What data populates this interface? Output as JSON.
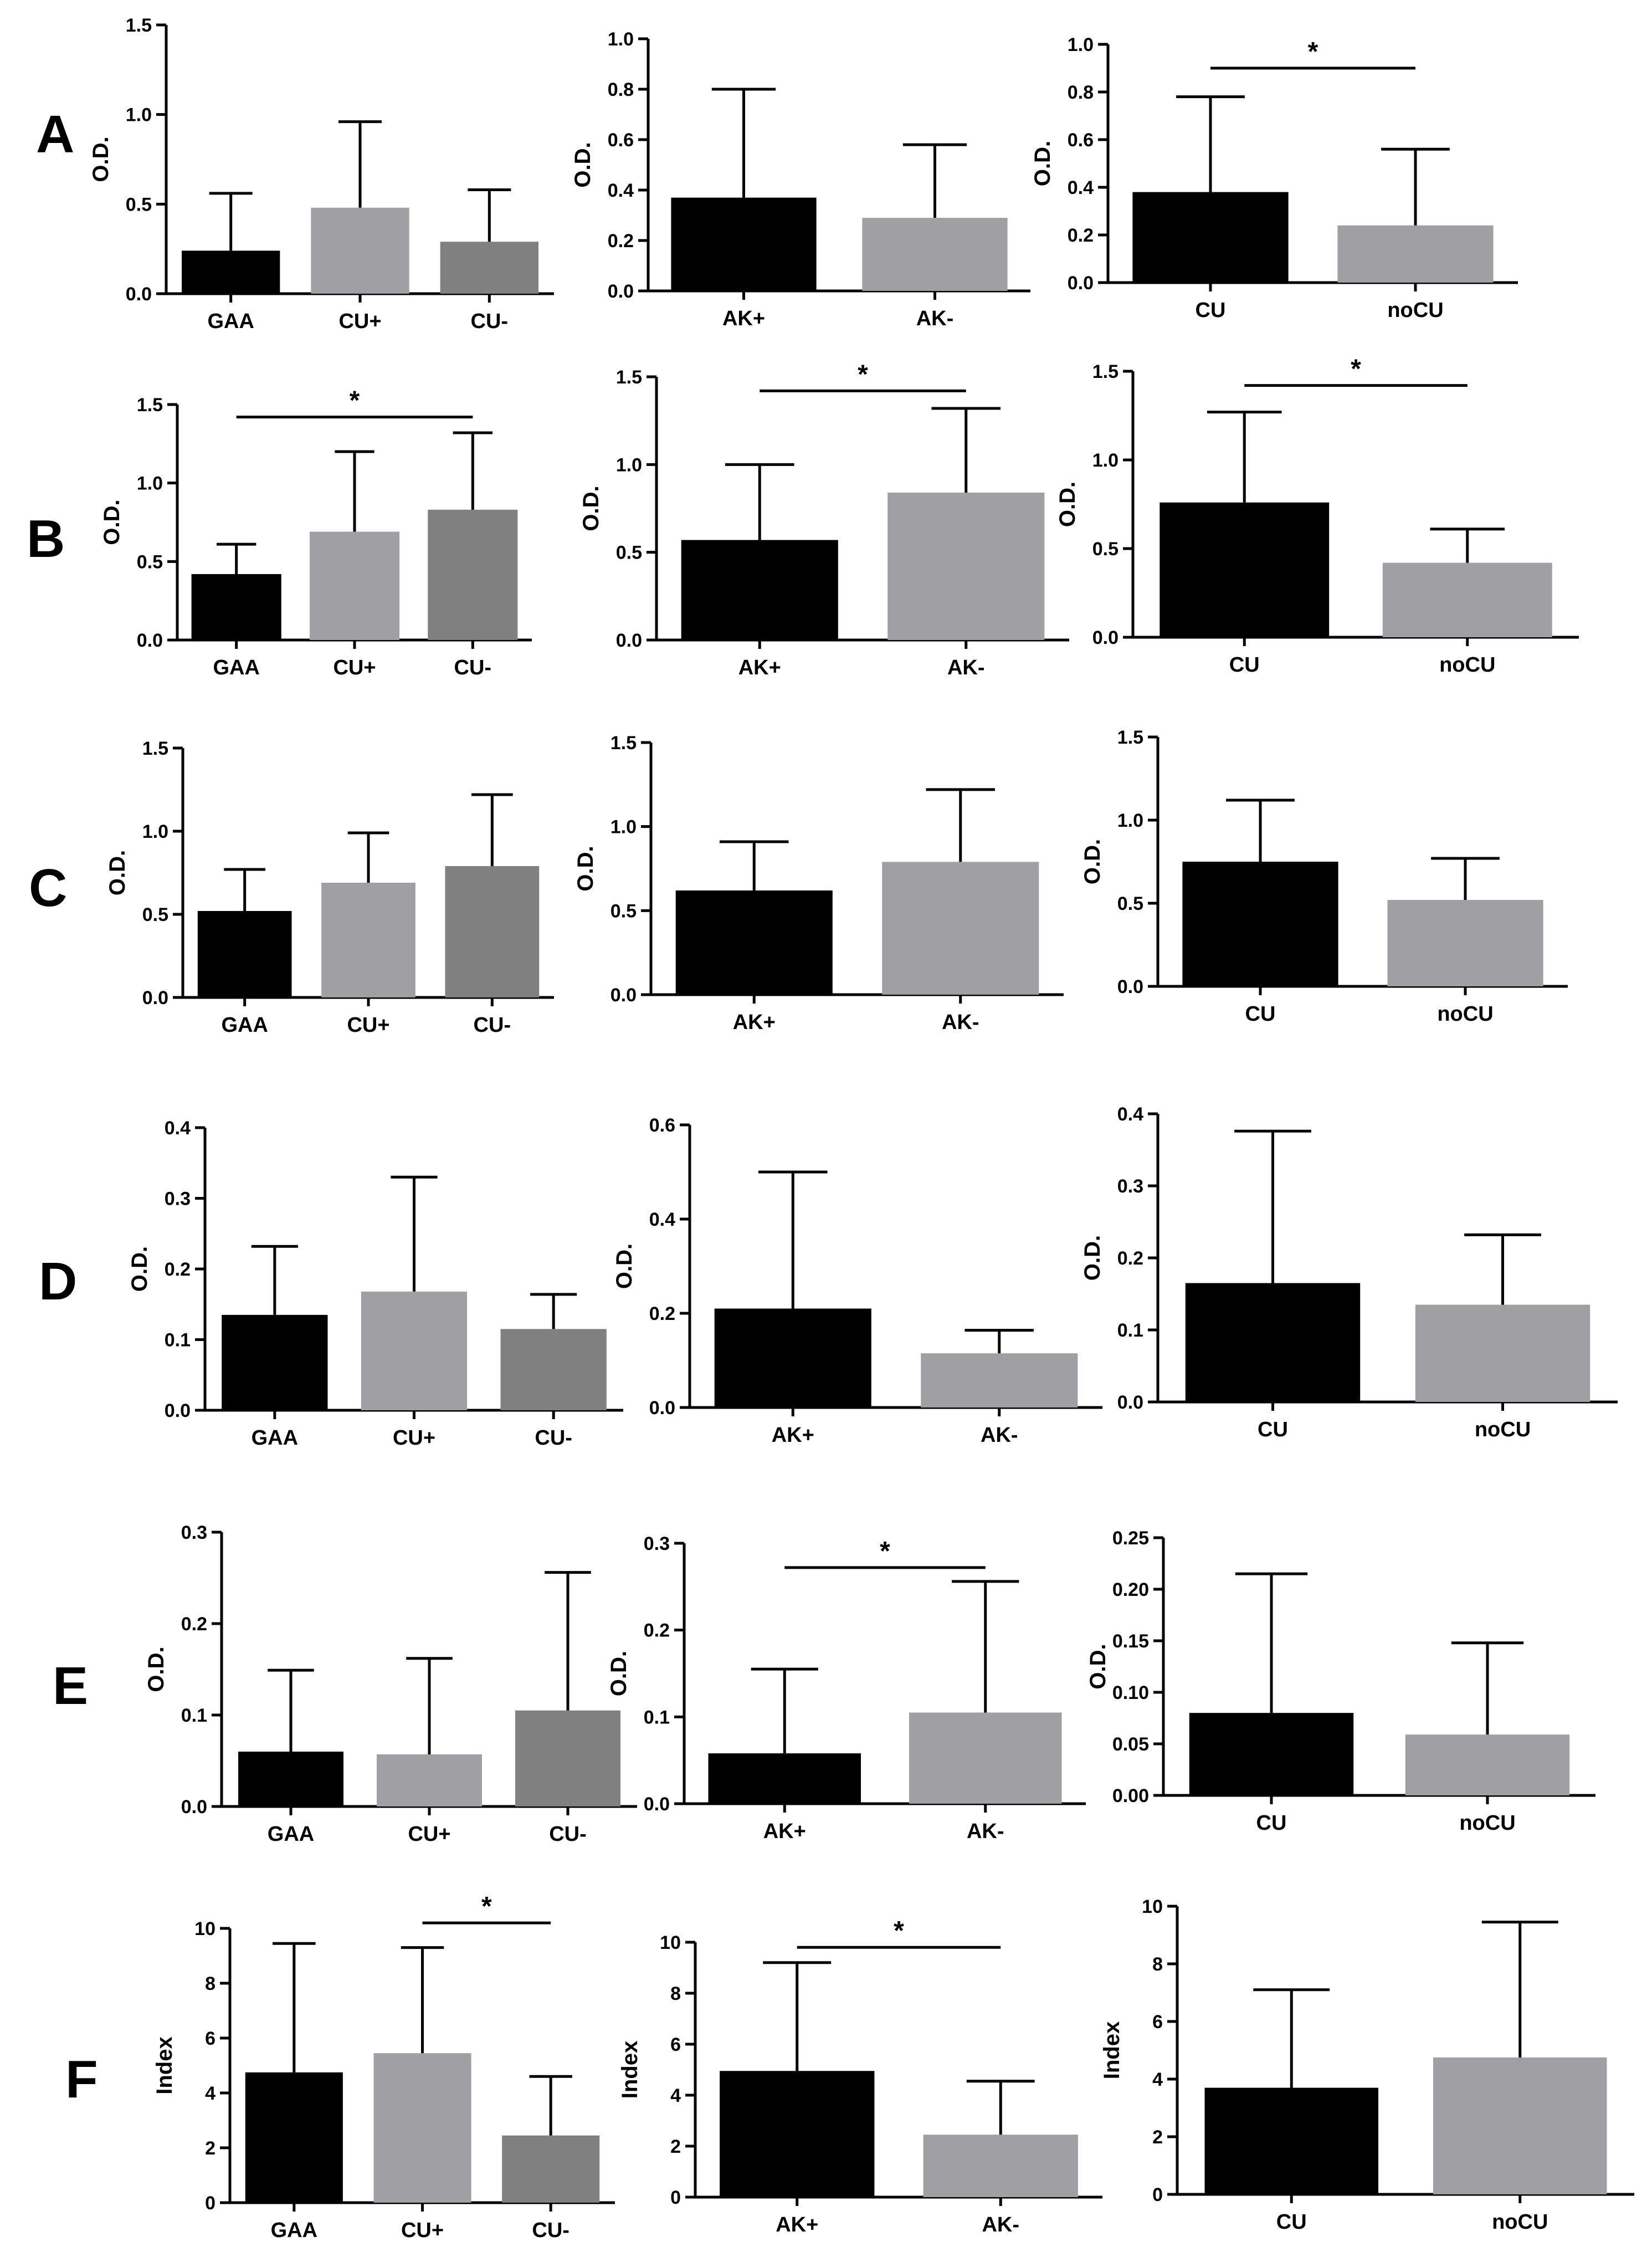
{
  "figure": {
    "row_labels": [
      "A",
      "B",
      "C",
      "D",
      "E",
      "F"
    ],
    "colors": {
      "black": "#000000",
      "light_gray": "#a0a0a4",
      "dark_gray": "#808080"
    }
  },
  "chart_data": [
    {
      "id": "A1",
      "row": "A",
      "type": "bar",
      "ylabel": "O.D.",
      "ylim": [
        0,
        1.5
      ],
      "yticks": [
        "0.0",
        "0.5",
        "1.0",
        "1.5"
      ],
      "categories": [
        "GAA",
        "CU+",
        "CU-"
      ],
      "values": [
        0.24,
        0.48,
        0.29
      ],
      "errors": [
        0.56,
        0.96,
        0.58
      ],
      "colors": [
        "#000000",
        "#a0a0a4",
        "#808080"
      ],
      "significance": []
    },
    {
      "id": "A2",
      "row": "A",
      "type": "bar",
      "ylabel": "O.D.",
      "ylim": [
        0,
        1.0
      ],
      "yticks": [
        "0.0",
        "0.2",
        "0.4",
        "0.6",
        "0.8",
        "1.0"
      ],
      "categories": [
        "AK+",
        "AK-"
      ],
      "values": [
        0.37,
        0.29
      ],
      "errors": [
        0.8,
        0.58
      ],
      "colors": [
        "#000000",
        "#a0a0a4"
      ],
      "significance": []
    },
    {
      "id": "A3",
      "row": "A",
      "type": "bar",
      "ylabel": "O.D.",
      "ylim": [
        0,
        1.0
      ],
      "yticks": [
        "0.0",
        "0.2",
        "0.4",
        "0.6",
        "0.8",
        "1.0"
      ],
      "categories": [
        "CU",
        "noCU"
      ],
      "values": [
        0.38,
        0.24
      ],
      "errors": [
        0.78,
        0.56
      ],
      "colors": [
        "#000000",
        "#a0a0a4"
      ],
      "significance": [
        {
          "from": 0,
          "to": 1,
          "y": 0.9,
          "label": "*"
        }
      ]
    },
    {
      "id": "B1",
      "row": "B",
      "type": "bar",
      "ylabel": "O.D.",
      "ylim": [
        0,
        1.5
      ],
      "yticks": [
        "0.0",
        "0.5",
        "1.0",
        "1.5"
      ],
      "categories": [
        "GAA",
        "CU+",
        "CU-"
      ],
      "values": [
        0.42,
        0.69,
        0.83
      ],
      "errors": [
        0.61,
        1.2,
        1.32
      ],
      "colors": [
        "#000000",
        "#a0a0a4",
        "#808080"
      ],
      "significance": [
        {
          "from": 0,
          "to": 2,
          "y": 1.42,
          "label": "*"
        }
      ]
    },
    {
      "id": "B2",
      "row": "B",
      "type": "bar",
      "ylabel": "O.D.",
      "ylim": [
        0,
        1.5
      ],
      "yticks": [
        "0.0",
        "0.5",
        "1.0",
        "1.5"
      ],
      "categories": [
        "AK+",
        "AK-"
      ],
      "values": [
        0.57,
        0.84
      ],
      "errors": [
        1.0,
        1.32
      ],
      "colors": [
        "#000000",
        "#a0a0a4"
      ],
      "significance": [
        {
          "from": 0,
          "to": 1,
          "y": 1.42,
          "label": "*"
        }
      ]
    },
    {
      "id": "B3",
      "row": "B",
      "type": "bar",
      "ylabel": "O.D.",
      "ylim": [
        0,
        1.5
      ],
      "yticks": [
        "0.0",
        "0.5",
        "1.0",
        "1.5"
      ],
      "categories": [
        "CU",
        "noCU"
      ],
      "values": [
        0.76,
        0.42
      ],
      "errors": [
        1.27,
        0.61
      ],
      "colors": [
        "#000000",
        "#a0a0a4"
      ],
      "significance": [
        {
          "from": 0,
          "to": 1,
          "y": 1.42,
          "label": "*"
        }
      ]
    },
    {
      "id": "C1",
      "row": "C",
      "type": "bar",
      "ylabel": "O.D.",
      "ylim": [
        0,
        1.5
      ],
      "yticks": [
        "0.0",
        "0.5",
        "1.0",
        "1.5"
      ],
      "categories": [
        "GAA",
        "CU+",
        "CU-"
      ],
      "values": [
        0.52,
        0.69,
        0.79
      ],
      "errors": [
        0.77,
        0.99,
        1.22
      ],
      "colors": [
        "#000000",
        "#a0a0a4",
        "#808080"
      ],
      "significance": []
    },
    {
      "id": "C2",
      "row": "C",
      "type": "bar",
      "ylabel": "O.D.",
      "ylim": [
        0,
        1.5
      ],
      "yticks": [
        "0.0",
        "0.5",
        "1.0",
        "1.5"
      ],
      "categories": [
        "AK+",
        "AK-"
      ],
      "values": [
        0.62,
        0.79
      ],
      "errors": [
        0.91,
        1.22
      ],
      "colors": [
        "#000000",
        "#a0a0a4"
      ],
      "significance": []
    },
    {
      "id": "C3",
      "row": "C",
      "type": "bar",
      "ylabel": "O.D.",
      "ylim": [
        0,
        1.5
      ],
      "yticks": [
        "0.0",
        "0.5",
        "1.0",
        "1.5"
      ],
      "categories": [
        "CU",
        "noCU"
      ],
      "values": [
        0.75,
        0.52
      ],
      "errors": [
        1.12,
        0.77
      ],
      "colors": [
        "#000000",
        "#a0a0a4"
      ],
      "significance": []
    },
    {
      "id": "D1",
      "row": "D",
      "type": "bar",
      "ylabel": "O.D.",
      "ylim": [
        0,
        0.4
      ],
      "yticks": [
        "0.0",
        "0.1",
        "0.2",
        "0.3",
        "0.4"
      ],
      "categories": [
        "GAA",
        "CU+",
        "CU-"
      ],
      "values": [
        0.135,
        0.168,
        0.115
      ],
      "errors": [
        0.232,
        0.33,
        0.164
      ],
      "colors": [
        "#000000",
        "#a0a0a4",
        "#808080"
      ],
      "significance": []
    },
    {
      "id": "D2",
      "row": "D",
      "type": "bar",
      "ylabel": "O.D.",
      "ylim": [
        0,
        0.6
      ],
      "yticks": [
        "0.0",
        "0.2",
        "0.4",
        "0.6"
      ],
      "categories": [
        "AK+",
        "AK-"
      ],
      "values": [
        0.21,
        0.115
      ],
      "errors": [
        0.5,
        0.164
      ],
      "colors": [
        "#000000",
        "#a0a0a4"
      ],
      "significance": []
    },
    {
      "id": "D3",
      "row": "D",
      "type": "bar",
      "ylabel": "O.D.",
      "ylim": [
        0,
        0.4
      ],
      "yticks": [
        "0.0",
        "0.1",
        "0.2",
        "0.3",
        "0.4"
      ],
      "categories": [
        "CU",
        "noCU"
      ],
      "values": [
        0.165,
        0.135
      ],
      "errors": [
        0.376,
        0.232
      ],
      "colors": [
        "#000000",
        "#a0a0a4"
      ],
      "significance": []
    },
    {
      "id": "E1",
      "row": "E",
      "type": "bar",
      "ylabel": "O.D.",
      "ylim": [
        0,
        0.3
      ],
      "yticks": [
        "0.0",
        "0.1",
        "0.2",
        "0.3"
      ],
      "categories": [
        "GAA",
        "CU+",
        "CU-"
      ],
      "values": [
        0.06,
        0.057,
        0.105
      ],
      "errors": [
        0.149,
        0.162,
        0.256
      ],
      "colors": [
        "#000000",
        "#a0a0a4",
        "#808080"
      ],
      "significance": []
    },
    {
      "id": "E2",
      "row": "E",
      "type": "bar",
      "ylabel": "O.D.",
      "ylim": [
        0,
        0.3
      ],
      "yticks": [
        "0.0",
        "0.1",
        "0.2",
        "0.3"
      ],
      "categories": [
        "AK+",
        "AK-"
      ],
      "values": [
        0.058,
        0.105
      ],
      "errors": [
        0.155,
        0.256
      ],
      "colors": [
        "#000000",
        "#a0a0a4"
      ],
      "significance": [
        {
          "from": 0,
          "to": 1,
          "y": 0.272,
          "label": "*"
        }
      ]
    },
    {
      "id": "E3",
      "row": "E",
      "type": "bar",
      "ylabel": "O.D.",
      "ylim": [
        0,
        0.25
      ],
      "yticks": [
        "0.00",
        "0.05",
        "0.10",
        "0.15",
        "0.20",
        "0.25"
      ],
      "categories": [
        "CU",
        "noCU"
      ],
      "values": [
        0.08,
        0.059
      ],
      "errors": [
        0.215,
        0.148
      ],
      "colors": [
        "#000000",
        "#a0a0a4"
      ],
      "significance": []
    },
    {
      "id": "F1",
      "row": "F",
      "type": "bar",
      "ylabel": "Index",
      "ylim": [
        0,
        10
      ],
      "yticks": [
        "0",
        "2",
        "4",
        "6",
        "8",
        "10"
      ],
      "categories": [
        "GAA",
        "CU+",
        "CU-"
      ],
      "values": [
        4.75,
        5.45,
        2.45
      ],
      "errors": [
        9.45,
        9.3,
        4.6
      ],
      "colors": [
        "#000000",
        "#a0a0a4",
        "#808080"
      ],
      "significance": [
        {
          "from": 1,
          "to": 2,
          "y": 10.2,
          "label": "*"
        }
      ]
    },
    {
      "id": "F2",
      "row": "F",
      "type": "bar",
      "ylabel": "Index",
      "ylim": [
        0,
        10
      ],
      "yticks": [
        "0",
        "2",
        "4",
        "6",
        "8",
        "10"
      ],
      "categories": [
        "AK+",
        "AK-"
      ],
      "values": [
        4.95,
        2.45
      ],
      "errors": [
        9.2,
        4.55
      ],
      "colors": [
        "#000000",
        "#a0a0a4"
      ],
      "significance": [
        {
          "from": 0,
          "to": 1,
          "y": 9.8,
          "label": "*"
        }
      ]
    },
    {
      "id": "F3",
      "row": "F",
      "type": "bar",
      "ylabel": "Index",
      "ylim": [
        0,
        10
      ],
      "yticks": [
        "0",
        "2",
        "4",
        "6",
        "8",
        "10"
      ],
      "categories": [
        "CU",
        "noCU"
      ],
      "values": [
        3.7,
        4.75
      ],
      "errors": [
        7.1,
        9.45
      ],
      "colors": [
        "#000000",
        "#a0a0a4"
      ],
      "significance": []
    }
  ]
}
